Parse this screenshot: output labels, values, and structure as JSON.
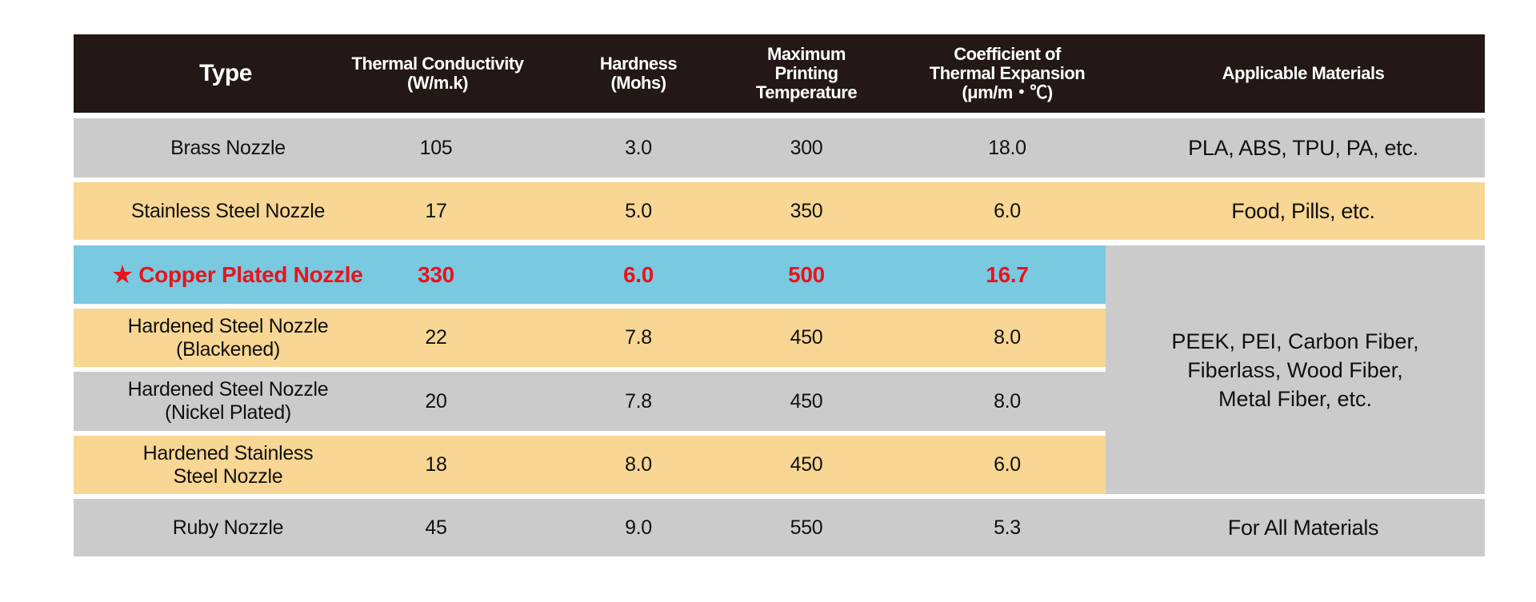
{
  "header": {
    "columns": [
      {
        "line1": "Type",
        "line2": ""
      },
      {
        "line1": "Thermal Conductivity",
        "line2": "(W/m.k)"
      },
      {
        "line1": "Hardness",
        "line2": "(Mohs)"
      },
      {
        "line1": "Maximum Printing",
        "line2": "Temperature"
      },
      {
        "line1": "Coefficient of Thermal Expansion",
        "line2": "(μm/m・℃)"
      },
      {
        "line1": "Applicable Materials",
        "line2": ""
      }
    ]
  },
  "rows": [
    {
      "type": "Brass Nozzle",
      "conductivity": "105",
      "hardness": "3.0",
      "max_temp": "300",
      "cte": "18.0",
      "materials": "PLA, ABS, TPU, PA, etc."
    },
    {
      "type": "Stainless Steel Nozzle",
      "conductivity": "17",
      "hardness": "5.0",
      "max_temp": "350",
      "cte": "6.0",
      "materials": "Food, Pills, etc."
    },
    {
      "type": "Copper Plated Nozzle",
      "star": "★",
      "conductivity": "330",
      "hardness": "6.0",
      "max_temp": "500",
      "cte": "16.7"
    },
    {
      "type": "Hardened Steel Nozzle",
      "type2": "(Blackened)",
      "conductivity": "22",
      "hardness": "7.8",
      "max_temp": "450",
      "cte": "8.0"
    },
    {
      "type": "Hardened Steel Nozzle",
      "type2": "(Nickel Plated)",
      "conductivity": "20",
      "hardness": "7.8",
      "max_temp": "450",
      "cte": "8.0"
    },
    {
      "type": "Hardened Stainless",
      "type2": "Steel Nozzle",
      "conductivity": "18",
      "hardness": "8.0",
      "max_temp": "450",
      "cte": "6.0"
    },
    {
      "type": "Ruby Nozzle",
      "conductivity": "45",
      "hardness": "9.0",
      "max_temp": "550",
      "cte": "5.3",
      "materials": "For All Materials"
    }
  ],
  "merged_materials": [
    "PEEK, PEI, Carbon Fiber,",
    "Fiberlass, Wood Fiber,",
    "Metal Fiber, etc."
  ],
  "colors": {
    "header": "#231815",
    "gray": "#cbcbcb",
    "yellow": "#f8d693",
    "blue": "#79c9e1",
    "highlight_text": "#e8141b"
  }
}
